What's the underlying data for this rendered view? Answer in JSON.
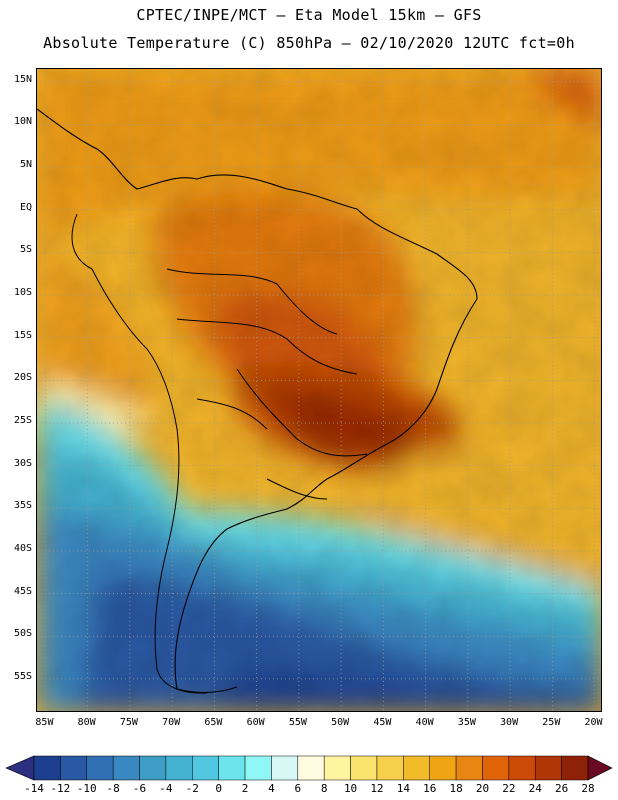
{
  "title": {
    "line1": "CPTEC/INPE/MCT –  Eta Model 15km – GFS",
    "line2": "Absolute Temperature (C) 850hPa – 02/10/2020 12UTC fct=0h"
  },
  "map": {
    "lat_labels": [
      "15N",
      "10N",
      "5N",
      "EQ",
      "5S",
      "10S",
      "15S",
      "20S",
      "25S",
      "30S",
      "35S",
      "40S",
      "45S",
      "50S",
      "55S"
    ],
    "lon_labels": [
      "85W",
      "80W",
      "75W",
      "70W",
      "65W",
      "60W",
      "55W",
      "50W",
      "45W",
      "40W",
      "35W",
      "30W",
      "25W",
      "20W"
    ],
    "lat_values": [
      15,
      10,
      5,
      0,
      -5,
      -10,
      -15,
      -20,
      -25,
      -30,
      -35,
      -40,
      -45,
      -50,
      -55
    ],
    "lon_values": [
      -85,
      -80,
      -75,
      -70,
      -65,
      -60,
      -55,
      -50,
      -45,
      -40,
      -35,
      -30,
      -25,
      -20
    ]
  },
  "colorbar": {
    "labels": [
      "-14",
      "-12",
      "-10",
      "-8",
      "-6",
      "-4",
      "-2",
      "0",
      "2",
      "4",
      "6",
      "8",
      "10",
      "12",
      "14",
      "16",
      "18",
      "20",
      "22",
      "24",
      "26",
      "28"
    ],
    "colors": [
      "#1e3f8e",
      "#2a58a3",
      "#3270b4",
      "#3a88c2",
      "#3f9ec8",
      "#44b3d2",
      "#52c8e0",
      "#6ce4ee",
      "#8ff8f6",
      "#d8f8f6",
      "#fffbe0",
      "#fff5a0",
      "#fbe46e",
      "#f6d04a",
      "#f2bb2a",
      "#efa414",
      "#e98512",
      "#df6408",
      "#cb4a06",
      "#b03606",
      "#8e2208"
    ],
    "under_color": "#2b2f80",
    "over_color": "#6a0a20"
  }
}
